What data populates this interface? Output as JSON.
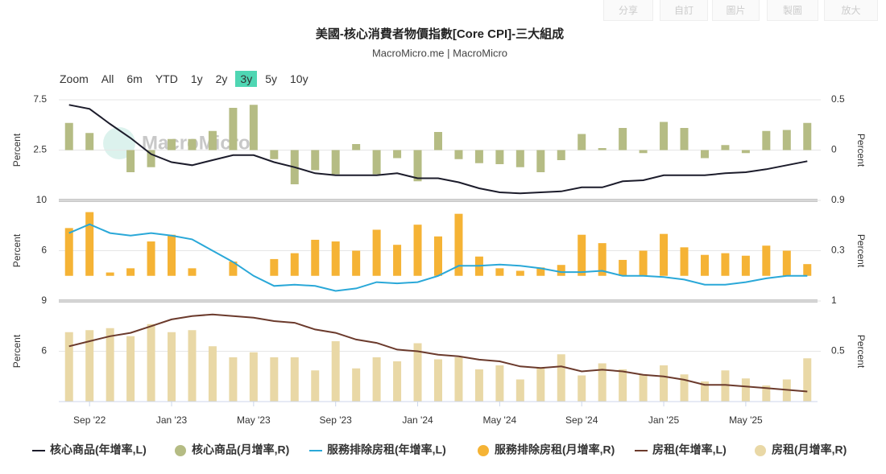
{
  "toolbar": [
    "分享",
    "自訂",
    "圖片",
    "製圖",
    "放大"
  ],
  "zoom": {
    "label": "Zoom",
    "buttons": [
      "All",
      "6m",
      "YTD",
      "1y",
      "2y",
      "3y",
      "5y",
      "10y"
    ],
    "selected": "3y"
  },
  "chart_data": {
    "type": "multi-panel",
    "title": "美國-核心消費者物價指數[Core CPI]-三大組成",
    "subtitle": "MacroMicro.me | MacroMicro",
    "watermark": "MacroMicro",
    "categories": [
      null,
      "Sep '22",
      null,
      null,
      null,
      "Jan '23",
      null,
      null,
      null,
      "May '23",
      null,
      null,
      null,
      "Sep '23",
      null,
      null,
      null,
      "Jan '24",
      null,
      null,
      null,
      "May '24",
      null,
      null,
      null,
      "Sep '24",
      null,
      null,
      null,
      "Jan '25",
      null,
      null,
      null,
      "May '25",
      null,
      null,
      null
    ],
    "panels": [
      {
        "ylabel": "Percent",
        "y2label": "Percent",
        "ylim": [
          -2.5,
          7.5
        ],
        "yticks": [
          2.5,
          7.5
        ],
        "y2lim": [
          -0.5,
          0.5
        ],
        "y2ticks": [
          0,
          0.5
        ],
        "grid": true,
        "series": [
          {
            "name": "核心商品(年增率,L)",
            "type": "line",
            "color": "#1c1c2b",
            "values": [
              7.0,
              6.6,
              5.1,
              3.7,
              2.1,
              1.3,
              1.0,
              1.5,
              2.0,
              2.0,
              1.3,
              0.8,
              0.2,
              0.0,
              0.0,
              0.0,
              0.2,
              -0.3,
              -0.3,
              -0.7,
              -1.3,
              -1.7,
              -1.8,
              -1.7,
              -1.6,
              -1.2,
              -1.2,
              -0.6,
              -0.5,
              0.0,
              0.0,
              0.0,
              0.2,
              0.3,
              0.6,
              1.0,
              1.4
            ]
          },
          {
            "name": "核心商品(月增率,R)",
            "type": "bar",
            "axis": "y2",
            "color": "#b5bc84",
            "values": [
              0.27,
              0.17,
              0.0,
              -0.22,
              -0.17,
              0.11,
              0.11,
              0.19,
              0.42,
              0.45,
              -0.09,
              -0.34,
              -0.2,
              -0.24,
              0.06,
              -0.24,
              -0.08,
              -0.31,
              0.18,
              -0.09,
              -0.13,
              -0.14,
              -0.17,
              -0.22,
              -0.1,
              0.16,
              0.02,
              0.22,
              -0.03,
              0.28,
              0.22,
              -0.08,
              0.05,
              -0.03,
              0.19,
              0.2,
              0.27
            ]
          }
        ]
      },
      {
        "ylabel": "Percent",
        "y2label": "Percent",
        "ylim": [
          2,
          10
        ],
        "yticks": [
          6,
          10
        ],
        "y2lim": [
          -0.3,
          0.9
        ],
        "y2ticks": [
          0.3,
          0.9
        ],
        "grid": true,
        "series": [
          {
            "name": "服務排除房租(年增率,L)",
            "type": "line",
            "color": "#2aa8d8",
            "values": [
              7.4,
              8.1,
              7.4,
              7.2,
              7.4,
              7.2,
              6.9,
              6.0,
              5.1,
              4.0,
              3.2,
              3.3,
              3.2,
              2.8,
              3.0,
              3.5,
              3.4,
              3.5,
              4.0,
              4.8,
              4.8,
              4.9,
              4.8,
              4.6,
              4.3,
              4.3,
              4.4,
              4.0,
              4.0,
              3.9,
              3.7,
              3.3,
              3.3,
              3.5,
              3.8,
              4.0,
              4.0
            ]
          },
          {
            "name": "服務排除房租(月增率,R)",
            "type": "bar",
            "axis": "y2",
            "color": "#f5b335",
            "values": [
              0.57,
              0.76,
              0.04,
              0.09,
              0.41,
              0.49,
              0.09,
              0.0,
              0.17,
              0.0,
              0.2,
              0.27,
              0.43,
              0.41,
              0.3,
              0.55,
              0.37,
              0.61,
              0.47,
              0.74,
              0.23,
              0.09,
              0.06,
              0.1,
              0.13,
              0.49,
              0.39,
              0.19,
              0.3,
              0.5,
              0.34,
              0.25,
              0.27,
              0.24,
              0.36,
              0.3,
              0.14
            ]
          }
        ]
      },
      {
        "ylabel": "Percent",
        "y2label": "Percent",
        "ylim": [
          3,
          9
        ],
        "yticks": [
          6,
          9
        ],
        "y2lim": [
          0,
          1
        ],
        "y2ticks": [
          0.5,
          1
        ],
        "grid": true,
        "series": [
          {
            "name": "房租(年增率,L)",
            "type": "line",
            "color": "#6b3a2c",
            "values": [
              6.3,
              6.6,
              6.9,
              7.1,
              7.5,
              7.9,
              8.1,
              8.2,
              8.1,
              8.0,
              7.8,
              7.7,
              7.3,
              7.1,
              6.7,
              6.5,
              6.1,
              6.0,
              5.8,
              5.7,
              5.5,
              5.4,
              5.1,
              5.0,
              5.1,
              4.8,
              4.9,
              4.8,
              4.6,
              4.5,
              4.3,
              4.0,
              4.0,
              3.9,
              3.8,
              3.7,
              3.6
            ]
          },
          {
            "name": "房租(月增率,R)",
            "type": "bar",
            "axis": "y2",
            "color": "#e9d8a6",
            "values": [
              0.69,
              0.71,
              0.73,
              0.65,
              0.77,
              0.69,
              0.71,
              0.55,
              0.44,
              0.49,
              0.44,
              0.44,
              0.31,
              0.6,
              0.33,
              0.44,
              0.4,
              0.58,
              0.42,
              0.44,
              0.32,
              0.36,
              0.22,
              0.34,
              0.47,
              0.26,
              0.38,
              0.32,
              0.27,
              0.36,
              0.27,
              0.2,
              0.31,
              0.23,
              0.16,
              0.22,
              0.43
            ]
          }
        ]
      }
    ]
  }
}
